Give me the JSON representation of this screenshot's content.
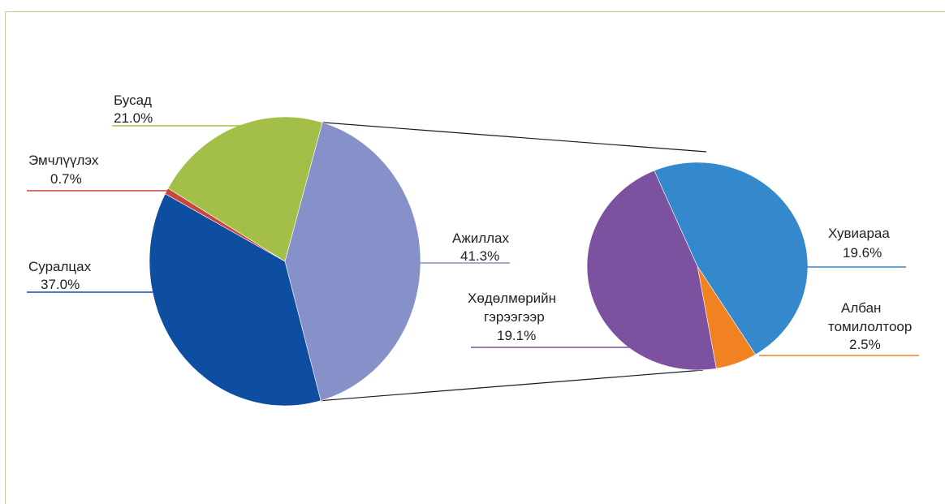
{
  "chart_data": {
    "type": "pie",
    "title": "",
    "main": {
      "slices": [
        {
          "name": "Ажиллах",
          "value_label": "41.3%",
          "value": 41.3,
          "color": "#8591c8"
        },
        {
          "name": "Суралцах",
          "value_label": "37.0%",
          "value": 37.0,
          "color": "#0e4ea0"
        },
        {
          "name": "Эмчлүүлэх",
          "value_label": "0.7%",
          "value": 0.7,
          "color": "#c9473f"
        },
        {
          "name": "Бусад",
          "value_label": "21.0%",
          "value": 21.0,
          "color": "#a4bf48"
        }
      ]
    },
    "breakdown": {
      "of": "Ажиллах",
      "slices": [
        {
          "name": "Хувиараа",
          "value_label": "19.6%",
          "value": 19.6,
          "color": "#3489cc"
        },
        {
          "name": "Албан томилолтоор",
          "name_lines": [
            "Албан",
            "томилолтоор"
          ],
          "value_label": "2.5%",
          "value": 2.5,
          "color": "#f08222"
        },
        {
          "name": "Хөдөлмөрийн гэрээгээр",
          "name_lines": [
            "Хөдөлмөрийн",
            "гэрээгээр"
          ],
          "value_label": "19.1%",
          "value": 19.1,
          "color": "#7b51a0"
        }
      ]
    }
  }
}
